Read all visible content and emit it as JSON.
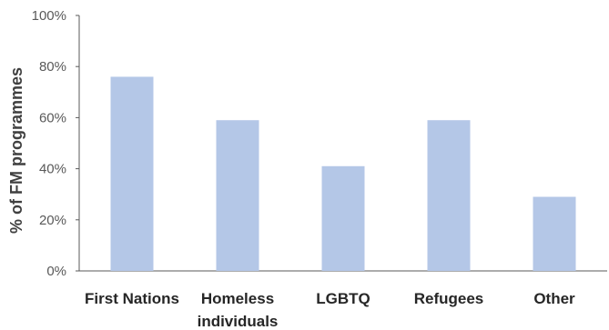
{
  "chart_data": {
    "type": "bar",
    "title": "",
    "xlabel": "",
    "ylabel": "% of FM programmes",
    "categories": [
      [
        "First Nations"
      ],
      [
        "Homeless",
        "individuals"
      ],
      [
        "LGBTQ"
      ],
      [
        "Refugees"
      ],
      [
        "Other"
      ]
    ],
    "values": [
      76,
      59,
      41,
      59,
      29
    ],
    "ylim": [
      0,
      100
    ],
    "yticks": [
      0,
      20,
      40,
      60,
      80,
      100
    ],
    "ytick_labels": [
      "0%",
      "20%",
      "40%",
      "60%",
      "80%",
      "100%"
    ],
    "grid": false,
    "legend": "none",
    "bar_color": "#b4c7e7",
    "axis_color": "#595959"
  }
}
